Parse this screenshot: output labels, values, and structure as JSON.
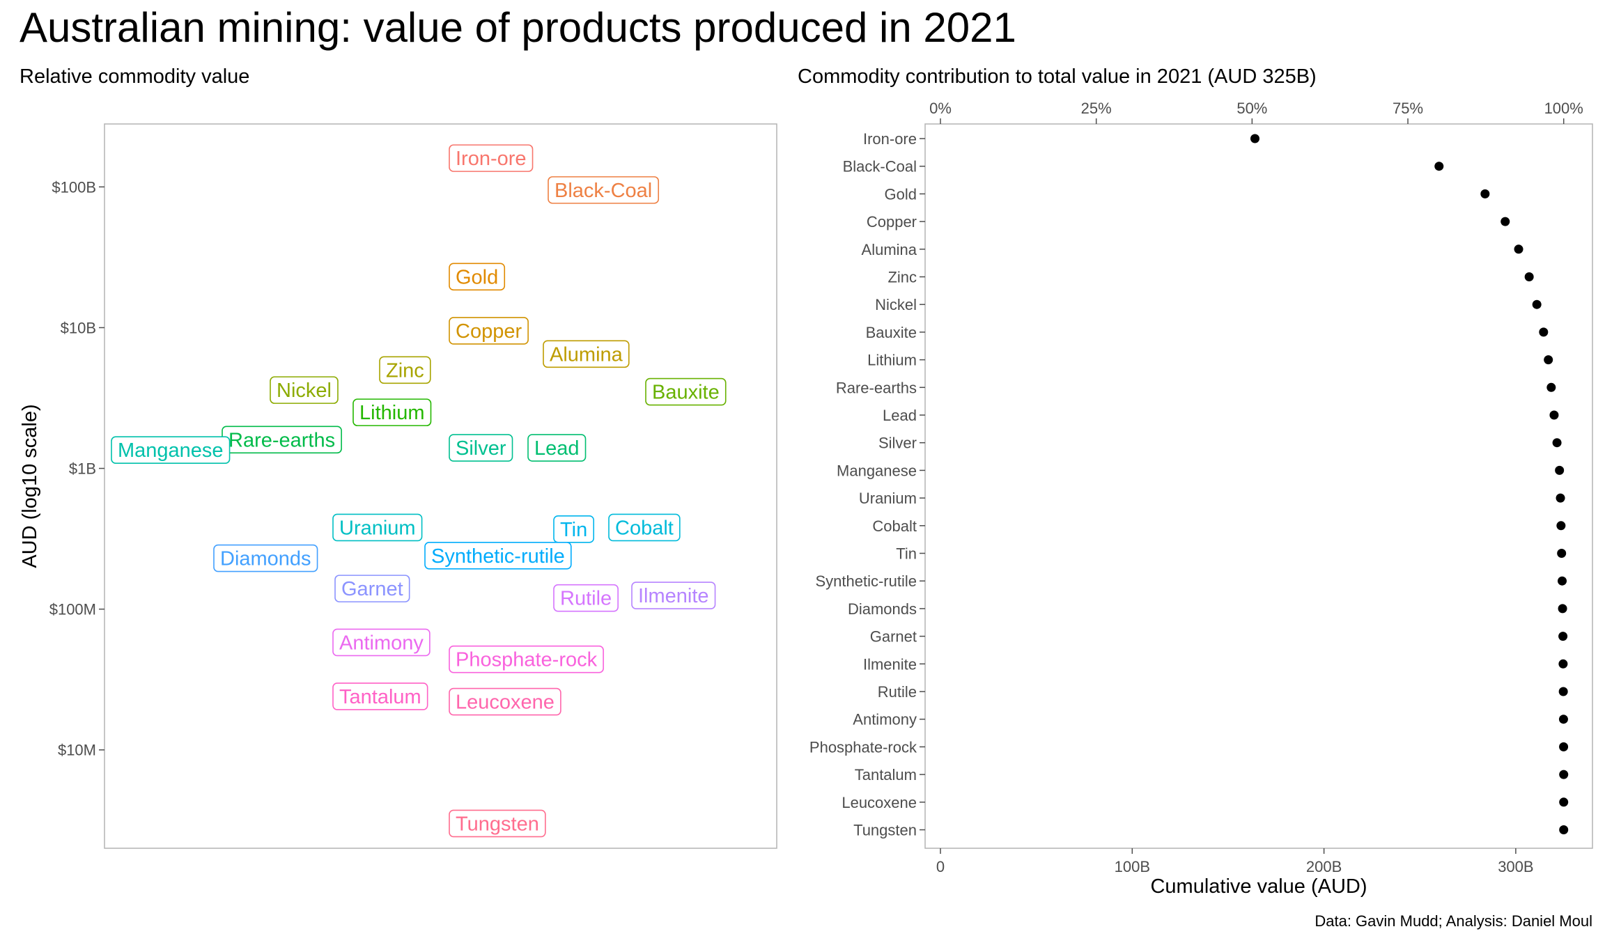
{
  "title": "Australian mining: value of products produced in 2021",
  "caption": "Data: Gavin Mudd; Analysis: Daniel Moul",
  "chart_data": [
    {
      "type": "scatter",
      "subtitle": "Relative commodity value",
      "ylabel": "AUD (log10 scale)",
      "xlabel": "",
      "y_scale": "log10",
      "ylim": [
        2000000,
        280000000000
      ],
      "y_ticks": [
        {
          "value": 10000000,
          "label": "$10M"
        },
        {
          "value": 100000000,
          "label": "$100M"
        },
        {
          "value": 1000000000,
          "label": "$1B"
        },
        {
          "value": 10000000000,
          "label": "$10B"
        },
        {
          "value": 100000000000,
          "label": "$100B"
        }
      ],
      "grid": false,
      "legend": "none",
      "points": [
        {
          "label": "Iron-ore",
          "value": 160000000000,
          "color": "#F8766D"
        },
        {
          "label": "Black-Coal",
          "value": 95000000000,
          "color": "#F8766D"
        },
        {
          "label": "Gold",
          "value": 23000000000,
          "color": "#F8766D"
        },
        {
          "label": "Copper",
          "value": 9500000000,
          "color": "#F8766D"
        },
        {
          "label": "Alumina",
          "value": 6500000000,
          "color": "#F8766D"
        },
        {
          "label": "Zinc",
          "value": 5000000000,
          "color": "#F8766D"
        },
        {
          "label": "Nickel",
          "value": 3600000000,
          "color": "#F8766D"
        },
        {
          "label": "Bauxite",
          "value": 3500000000,
          "color": "#F8766D"
        },
        {
          "label": "Lithium",
          "value": 2500000000,
          "color": "#F8766D"
        },
        {
          "label": "Rare-earths",
          "value": 1600000000,
          "color": "#F8766D"
        },
        {
          "label": "Lead",
          "value": 1400000000,
          "color": "#F8766D"
        },
        {
          "label": "Silver",
          "value": 1400000000,
          "color": "#F8766D"
        },
        {
          "label": "Manganese",
          "value": 1350000000,
          "color": "#F8766D"
        },
        {
          "label": "Uranium",
          "value": 380000000,
          "color": "#F8766D"
        },
        {
          "label": "Cobalt",
          "value": 380000000,
          "color": "#F8766D"
        },
        {
          "label": "Tin",
          "value": 370000000,
          "color": "#F8766D"
        },
        {
          "label": "Synthetic-rutile",
          "value": 240000000,
          "color": "#F8766D"
        },
        {
          "label": "Diamonds",
          "value": 230000000,
          "color": "#F8766D"
        },
        {
          "label": "Garnet",
          "value": 140000000,
          "color": "#F8766D"
        },
        {
          "label": "Ilmenite",
          "value": 125000000,
          "color": "#F8766D"
        },
        {
          "label": "Rutile",
          "value": 120000000,
          "color": "#F8766D"
        },
        {
          "label": "Antimony",
          "value": 58000000,
          "color": "#F8766D"
        },
        {
          "label": "Phosphate-rock",
          "value": 44000000,
          "color": "#F8766D"
        },
        {
          "label": "Tantalum",
          "value": 24000000,
          "color": "#F8766D"
        },
        {
          "label": "Leucoxene",
          "value": 22000000,
          "color": "#F8766D"
        },
        {
          "label": "Tungsten",
          "value": 3000000,
          "color": "#F8766D"
        }
      ]
    },
    {
      "type": "scatter",
      "subtitle": "Commodity contribution to total value in 2021 (AUD 325B)",
      "xlabel": "Cumulative value (AUD)",
      "ylabel": "",
      "xlim": [
        -8,
        340
      ],
      "x_ticks": [
        {
          "value": 0,
          "label": "0"
        },
        {
          "value": 100,
          "label": "100B"
        },
        {
          "value": 200,
          "label": "200B"
        },
        {
          "value": 300,
          "label": "300B"
        }
      ],
      "x_top_ticks": [
        {
          "value": 0,
          "label": "0%"
        },
        {
          "value": 25,
          "label": "25%"
        },
        {
          "value": 50,
          "label": "50%"
        },
        {
          "value": 75,
          "label": "75%"
        },
        {
          "value": 100,
          "label": "100%"
        }
      ],
      "total": 325,
      "grid": false,
      "legend": "none",
      "categories": [
        "Iron-ore",
        "Black-Coal",
        "Gold",
        "Copper",
        "Alumina",
        "Zinc",
        "Nickel",
        "Bauxite",
        "Lithium",
        "Rare-earths",
        "Lead",
        "Silver",
        "Manganese",
        "Uranium",
        "Cobalt",
        "Tin",
        "Synthetic-rutile",
        "Diamonds",
        "Garnet",
        "Ilmenite",
        "Rutile",
        "Antimony",
        "Phosphate-rock",
        "Tantalum",
        "Leucoxene",
        "Tungsten"
      ],
      "values": [
        164,
        260,
        284,
        294.5,
        301.5,
        307,
        311,
        314.5,
        317,
        318.5,
        320,
        321.5,
        322.8,
        323.3,
        323.6,
        323.9,
        324.2,
        324.4,
        324.6,
        324.7,
        324.8,
        324.9,
        324.95,
        325,
        325,
        325
      ]
    }
  ]
}
